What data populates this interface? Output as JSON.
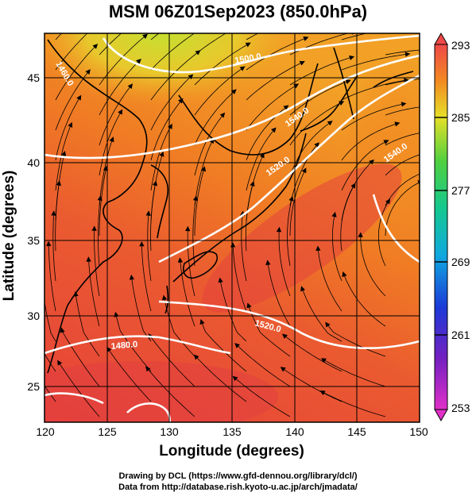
{
  "title": "MSM 06Z01Sep2023 (850.0hPa)",
  "x_axis": {
    "label": "Longitude (degrees)",
    "ticks": [
      {
        "label": "120",
        "lon": 120
      },
      {
        "label": "125",
        "lon": 125
      },
      {
        "label": "130",
        "lon": 130
      },
      {
        "label": "135",
        "lon": 135
      },
      {
        "label": "140",
        "lon": 140
      },
      {
        "label": "145",
        "lon": 145
      },
      {
        "label": "150",
        "lon": 150
      }
    ]
  },
  "y_axis": {
    "label": "Latitude  (degrees)",
    "ticks": [
      {
        "label": "25",
        "lat": 25
      },
      {
        "label": "30",
        "lat": 30
      },
      {
        "label": "35",
        "lat": 35
      },
      {
        "label": "40",
        "lat": 40
      },
      {
        "label": "45",
        "lat": 45
      }
    ]
  },
  "colorbar": {
    "labels": [
      "293",
      "285",
      "277",
      "269",
      "261",
      "253"
    ]
  },
  "contour_labels": [
    {
      "text": "1460.0"
    },
    {
      "text": "1480.0"
    },
    {
      "text": "1500.0"
    },
    {
      "text": "1520.0"
    },
    {
      "text": "1520.0"
    },
    {
      "text": "1540.0"
    },
    {
      "text": "1540.0"
    }
  ],
  "credits": {
    "line1": "Drawing by DCL (https://www.gfd-dennou.org/library/dcl/)",
    "line2": "Data from http://database.rish.kyoto-u.ac.jp/arch/jmadata/"
  },
  "colors": {
    "warm_red": "#e8483a",
    "orange": "#f07820",
    "yellow_green": "#c8e02a",
    "contour": "#ffffff",
    "streamline": "#000000"
  }
}
